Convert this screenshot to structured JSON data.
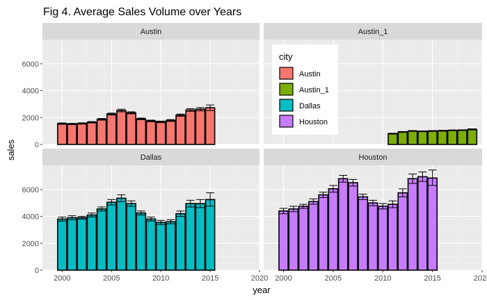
{
  "chart_data": {
    "type": "bar",
    "title": "Fig 4. Average Sales Volume over Years",
    "xlabel": "year",
    "ylabel": "sales",
    "xlim": [
      1998,
      2020
    ],
    "ylim": [
      0,
      7800
    ],
    "x_ticks": [
      "2000",
      "2005",
      "2010",
      "2015",
      "2020"
    ],
    "y_ticks": [
      "0",
      "2000",
      "4000",
      "6000"
    ],
    "grid": true,
    "legend": {
      "title": "city",
      "placement": "inside-top-right-panel",
      "entries": [
        "Austin",
        "Austin_1",
        "Dallas",
        "Houston"
      ]
    },
    "colors": {
      "Austin": "#F8766D",
      "Austin_1": "#7CAE00",
      "Dallas": "#00BFC4",
      "Houston": "#C77CFF"
    },
    "panels": [
      {
        "name": "Austin",
        "color": "#F8766D",
        "x": [
          2000,
          2001,
          2002,
          2003,
          2004,
          2005,
          2006,
          2007,
          2008,
          2009,
          2010,
          2011,
          2012,
          2013,
          2014,
          2015
        ],
        "values": [
          1550,
          1520,
          1560,
          1650,
          1870,
          2260,
          2520,
          2350,
          1900,
          1750,
          1680,
          1780,
          2180,
          2560,
          2620,
          2730
        ],
        "err_low": [
          1500,
          1470,
          1510,
          1600,
          1810,
          2190,
          2430,
          2270,
          1840,
          1690,
          1620,
          1710,
          2100,
          2460,
          2500,
          2520
        ],
        "err_high": [
          1600,
          1570,
          1610,
          1700,
          1930,
          2330,
          2620,
          2430,
          1960,
          1810,
          1740,
          1850,
          2260,
          2660,
          2740,
          2940
        ]
      },
      {
        "name": "Austin_1",
        "color": "#7CAE00",
        "x": [
          2011,
          2012,
          2013,
          2014,
          2015,
          2016,
          2017,
          2018,
          2019
        ],
        "values": [
          800,
          930,
          1000,
          980,
          1000,
          1020,
          1050,
          1060,
          1120
        ],
        "err_low": [
          770,
          900,
          970,
          950,
          970,
          990,
          1020,
          1030,
          1080
        ],
        "err_high": [
          830,
          960,
          1030,
          1010,
          1030,
          1050,
          1080,
          1090,
          1160
        ]
      },
      {
        "name": "Dallas",
        "color": "#00BFC4",
        "x": [
          2000,
          2001,
          2002,
          2003,
          2004,
          2005,
          2006,
          2007,
          2008,
          2009,
          2010,
          2011,
          2012,
          2013,
          2014,
          2015
        ],
        "values": [
          3800,
          3900,
          3900,
          4100,
          4550,
          5050,
          5350,
          4950,
          4250,
          3800,
          3550,
          3600,
          4200,
          4950,
          4950,
          5250
        ],
        "err_low": [
          3650,
          3750,
          3800,
          3950,
          4400,
          4850,
          5100,
          4750,
          4100,
          3650,
          3400,
          3450,
          4000,
          4700,
          4650,
          4750
        ],
        "err_high": [
          3950,
          4050,
          4000,
          4250,
          4700,
          5250,
          5600,
          5150,
          4400,
          3950,
          3700,
          3750,
          4400,
          5200,
          5250,
          5750
        ]
      },
      {
        "name": "Houston",
        "color": "#C77CFF",
        "x": [
          2000,
          2001,
          2002,
          2003,
          2004,
          2005,
          2006,
          2007,
          2008,
          2009,
          2010,
          2011,
          2012,
          2013,
          2014,
          2015
        ],
        "values": [
          4400,
          4550,
          4750,
          5100,
          5600,
          6050,
          6800,
          6500,
          5450,
          5000,
          4750,
          4900,
          5750,
          6800,
          6950,
          6850
        ],
        "err_low": [
          4200,
          4350,
          4600,
          4900,
          5400,
          5800,
          6550,
          6250,
          5250,
          4800,
          4550,
          4650,
          5450,
          6450,
          6600,
          6300
        ],
        "err_high": [
          4600,
          4750,
          4900,
          5300,
          5800,
          6300,
          7050,
          6750,
          5650,
          5200,
          4950,
          5150,
          6050,
          7150,
          7300,
          7450
        ]
      }
    ]
  }
}
